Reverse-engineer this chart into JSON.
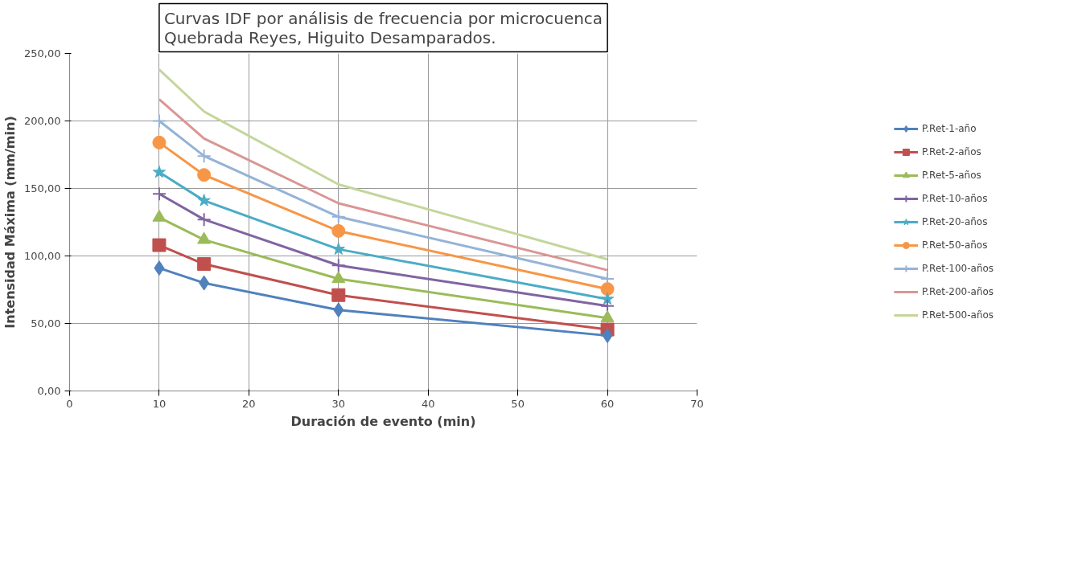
{
  "chart_data": {
    "type": "line",
    "title": "Curvas IDF por análisis de frecuencia por microcuenca\nQuebrada Reyes, Higuito Desamparados.",
    "xlabel": "Duración de evento (min)",
    "ylabel": "Intensidad Máxima (mm/min)",
    "x": [
      10,
      15,
      30,
      60
    ],
    "series": [
      {
        "name": "P.Ret-1-año",
        "color": "#4f81bd",
        "marker": "diamond",
        "values": [
          91,
          80,
          60,
          41
        ]
      },
      {
        "name": "P.Ret-2-años",
        "color": "#c0504d",
        "marker": "square",
        "values": [
          108,
          94,
          71,
          45.5
        ]
      },
      {
        "name": "P.Ret-5-años",
        "color": "#9bbb59",
        "marker": "triangle",
        "values": [
          128.5,
          112,
          83,
          54
        ]
      },
      {
        "name": "P.Ret-10-años",
        "color": "#8064a2",
        "marker": "cross",
        "values": [
          146,
          127,
          93,
          63
        ]
      },
      {
        "name": "P.Ret-20-años",
        "color": "#4bacc6",
        "marker": "star",
        "values": [
          162,
          141,
          105,
          68
        ]
      },
      {
        "name": "P.Ret-50-años",
        "color": "#f79646",
        "marker": "circle",
        "values": [
          184,
          160,
          118.5,
          75.5
        ]
      },
      {
        "name": "P.Ret-100-años",
        "color": "#95b3d7",
        "marker": "cross",
        "values": [
          200,
          174,
          129,
          83
        ]
      },
      {
        "name": "P.Ret-200-años",
        "color": "#d99694",
        "marker": "none",
        "values": [
          216,
          187,
          139,
          89.5
        ]
      },
      {
        "name": "P.Ret-500-años",
        "color": "#c3d69b",
        "marker": "none",
        "values": [
          238,
          207,
          153,
          97.5
        ]
      }
    ],
    "xlim": [
      0,
      70
    ],
    "xticks": [
      0,
      10,
      20,
      30,
      40,
      50,
      60,
      70
    ],
    "ylim": [
      0,
      250
    ],
    "yticks": [
      {
        "value": 0,
        "label": "0,00"
      },
      {
        "value": 50,
        "label": "50,00"
      },
      {
        "value": 100,
        "label": "100,00"
      },
      {
        "value": 150,
        "label": "150,00"
      },
      {
        "value": 200,
        "label": "200,00"
      },
      {
        "value": 250,
        "label": "250,00"
      }
    ],
    "grid": true,
    "legend": "right"
  }
}
